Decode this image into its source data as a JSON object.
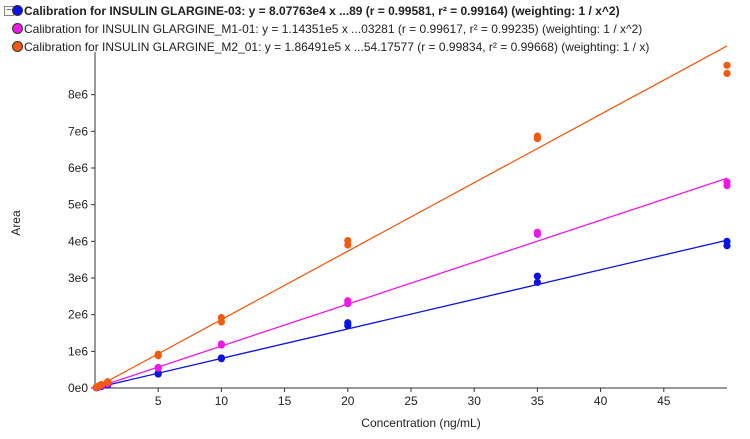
{
  "legend": {
    "collapse_glyph": "−",
    "entries": [
      {
        "text": "Calibration for INSULIN GLARGINE-03: y = 8.07763e4 x ...89 (r = 0.99581, r² = 0.99164)  (weighting: 1 / x^2)",
        "color": "#0a12e6",
        "bold": true
      },
      {
        "text": "Calibration for INSULIN GLARGINE_M1-01: y = 1.14351e5 x ...03281 (r = 0.99617, r² = 0.99235)  (weighting: 1 / x^2)",
        "color": "#f018e8",
        "bold": false
      },
      {
        "text": "Calibration for INSULIN GLARGINE_M2_01: y = 1.86491e5 x ...54.17577 (r = 0.99834, r² = 0.99668)  (weighting: 1 / x)",
        "color": "#f25a10",
        "bold": false
      }
    ]
  },
  "chart_data": {
    "type": "scatter",
    "xlabel": "Concentration (ng/mL)",
    "ylabel": "Area",
    "xlim": [
      0,
      50
    ],
    "ylim": [
      0,
      9000000
    ],
    "x_ticks": [
      5,
      10,
      15,
      20,
      25,
      30,
      35,
      40,
      45
    ],
    "y_ticks": [
      {
        "value": 0,
        "label": "0e0"
      },
      {
        "value": 1000000,
        "label": "1e6"
      },
      {
        "value": 2000000,
        "label": "2e6"
      },
      {
        "value": 3000000,
        "label": "3e6"
      },
      {
        "value": 4000000,
        "label": "4e6"
      },
      {
        "value": 5000000,
        "label": "5e6"
      },
      {
        "value": 6000000,
        "label": "6e6"
      },
      {
        "value": 7000000,
        "label": "7e6"
      },
      {
        "value": 8000000,
        "label": "8e6"
      }
    ],
    "grid": false,
    "series": [
      {
        "color": "#0a12e6",
        "line": {
          "x": [
            0,
            50
          ],
          "y": [
            0,
            4030000
          ]
        },
        "points": [
          [
            0.1,
            8000
          ],
          [
            0.1,
            9000
          ],
          [
            0.25,
            20000
          ],
          [
            0.25,
            22000
          ],
          [
            0.5,
            40000
          ],
          [
            0.5,
            45000
          ],
          [
            1,
            80000
          ],
          [
            1,
            82000
          ],
          [
            5,
            380000
          ],
          [
            5,
            400000
          ],
          [
            10,
            800000
          ],
          [
            10,
            820000
          ],
          [
            20,
            1700000
          ],
          [
            20,
            1780000
          ],
          [
            35,
            2880000
          ],
          [
            35,
            3050000
          ],
          [
            50,
            3880000
          ],
          [
            50,
            4000000
          ]
        ]
      },
      {
        "color": "#f018e8",
        "line": {
          "x": [
            0,
            50
          ],
          "y": [
            0,
            5720000
          ]
        },
        "points": [
          [
            0.1,
            11000
          ],
          [
            0.1,
            12000
          ],
          [
            0.25,
            28000
          ],
          [
            0.25,
            30000
          ],
          [
            0.5,
            55000
          ],
          [
            0.5,
            60000
          ],
          [
            1,
            115000
          ],
          [
            1,
            118000
          ],
          [
            5,
            540000
          ],
          [
            5,
            560000
          ],
          [
            10,
            1170000
          ],
          [
            10,
            1200000
          ],
          [
            20,
            2300000
          ],
          [
            20,
            2380000
          ],
          [
            35,
            4190000
          ],
          [
            35,
            4250000
          ],
          [
            50,
            5520000
          ],
          [
            50,
            5620000
          ]
        ]
      },
      {
        "color": "#f25a10",
        "line": {
          "x": [
            0,
            50
          ],
          "y": [
            0,
            9330000
          ]
        },
        "points": [
          [
            0.1,
            18000
          ],
          [
            0.1,
            20000
          ],
          [
            0.25,
            45000
          ],
          [
            0.25,
            48000
          ],
          [
            0.5,
            90000
          ],
          [
            0.5,
            95000
          ],
          [
            1,
            150000
          ],
          [
            1,
            170000
          ],
          [
            5,
            880000
          ],
          [
            5,
            920000
          ],
          [
            10,
            1800000
          ],
          [
            10,
            1920000
          ],
          [
            20,
            3900000
          ],
          [
            20,
            4020000
          ],
          [
            35,
            6800000
          ],
          [
            35,
            6870000
          ],
          [
            50,
            8580000
          ],
          [
            50,
            8800000
          ]
        ]
      }
    ]
  }
}
